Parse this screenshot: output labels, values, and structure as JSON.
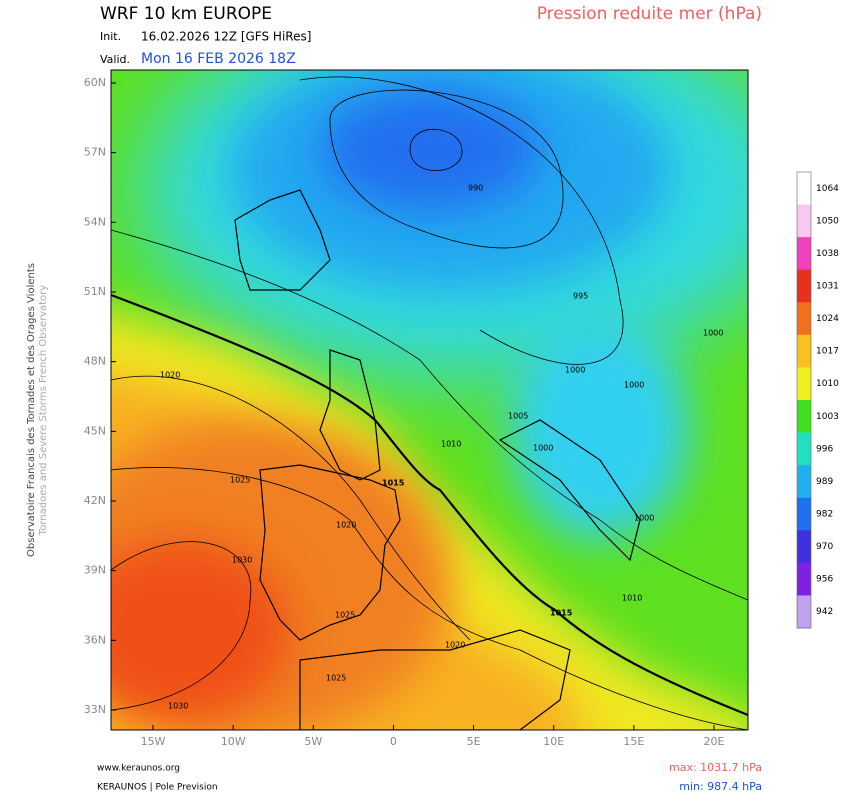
{
  "header": {
    "title": "WRF 10 km EUROPE",
    "init_label": "Init.",
    "init": "16.02.2026 12Z [GFS HiRes]",
    "valid_label": "Valid.",
    "valid": "Mon 16 FEB 2026 18Z",
    "product": "Pression reduite mer (hPa)"
  },
  "side": {
    "line1": "Observatoire Francais des Tornades et des Orages Violents",
    "line2": "Tornadoes and Severe Storms French Observatory"
  },
  "axes": {
    "lat_labels": [
      "60N",
      "57N",
      "54N",
      "51N",
      "48N",
      "45N",
      "42N",
      "39N",
      "36N",
      "33N"
    ],
    "lon_labels": [
      "15W",
      "10W",
      "5W",
      "0",
      "5E",
      "10E",
      "15E",
      "20E"
    ]
  },
  "contour_labels": [
    "990",
    "995",
    "1000",
    "1000",
    "1000",
    "1000",
    "1005",
    "1010",
    "1010",
    "1015",
    "1015",
    "1020",
    "1020",
    "1020",
    "1025",
    "1025",
    "1025",
    "1030",
    "1030",
    "1000"
  ],
  "colorbar": {
    "labels": [
      "1064",
      "1050",
      "1038",
      "1031",
      "1024",
      "1017",
      "1010",
      "1003",
      "996",
      "989",
      "982",
      "970",
      "956",
      "942"
    ],
    "colors": [
      "#ffffff",
      "#f8c8f0",
      "#f040c0",
      "#e83020",
      "#f07020",
      "#f8c020",
      "#f0f020",
      "#40e020",
      "#20e0c0",
      "#20b0f0",
      "#2070f0",
      "#4030e0",
      "#8020e0",
      "#c0a0f0"
    ]
  },
  "footer": {
    "site": "www.keraunos.org",
    "brand": "KERAUNOS | Pole Prevision",
    "max": "max: 1031.7 hPa",
    "min": "min: 987.4 hPa"
  }
}
